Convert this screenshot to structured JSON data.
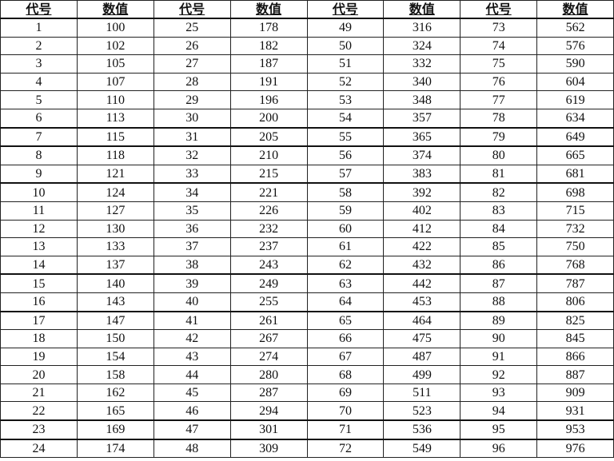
{
  "table": {
    "headers": [
      "代号",
      "数值",
      "代号",
      "数值",
      "代号",
      "数值",
      "代号",
      "数值"
    ],
    "rows": [
      [
        "1",
        "100",
        "25",
        "178",
        "49",
        "316",
        "73",
        "562"
      ],
      [
        "2",
        "102",
        "26",
        "182",
        "50",
        "324",
        "74",
        "576"
      ],
      [
        "3",
        "105",
        "27",
        "187",
        "51",
        "332",
        "75",
        "590"
      ],
      [
        "4",
        "107",
        "28",
        "191",
        "52",
        "340",
        "76",
        "604"
      ],
      [
        "5",
        "110",
        "29",
        "196",
        "53",
        "348",
        "77",
        "619"
      ],
      [
        "6",
        "113",
        "30",
        "200",
        "54",
        "357",
        "78",
        "634"
      ],
      [
        "7",
        "115",
        "31",
        "205",
        "55",
        "365",
        "79",
        "649"
      ],
      [
        "8",
        "118",
        "32",
        "210",
        "56",
        "374",
        "80",
        "665"
      ],
      [
        "9",
        "121",
        "33",
        "215",
        "57",
        "383",
        "81",
        "681"
      ],
      [
        "10",
        "124",
        "34",
        "221",
        "58",
        "392",
        "82",
        "698"
      ],
      [
        "11",
        "127",
        "35",
        "226",
        "59",
        "402",
        "83",
        "715"
      ],
      [
        "12",
        "130",
        "36",
        "232",
        "60",
        "412",
        "84",
        "732"
      ],
      [
        "13",
        "133",
        "37",
        "237",
        "61",
        "422",
        "85",
        "750"
      ],
      [
        "14",
        "137",
        "38",
        "243",
        "62",
        "432",
        "86",
        "768"
      ],
      [
        "15",
        "140",
        "39",
        "249",
        "63",
        "442",
        "87",
        "787"
      ],
      [
        "16",
        "143",
        "40",
        "255",
        "64",
        "453",
        "88",
        "806"
      ],
      [
        "17",
        "147",
        "41",
        "261",
        "65",
        "464",
        "89",
        "825"
      ],
      [
        "18",
        "150",
        "42",
        "267",
        "66",
        "475",
        "90",
        "845"
      ],
      [
        "19",
        "154",
        "43",
        "274",
        "67",
        "487",
        "91",
        "866"
      ],
      [
        "20",
        "158",
        "44",
        "280",
        "68",
        "499",
        "92",
        "887"
      ],
      [
        "21",
        "162",
        "45",
        "287",
        "69",
        "511",
        "93",
        "909"
      ],
      [
        "22",
        "165",
        "46",
        "294",
        "70",
        "523",
        "94",
        "931"
      ],
      [
        "23",
        "169",
        "47",
        "301",
        "71",
        "536",
        "95",
        "953"
      ],
      [
        "24",
        "174",
        "48",
        "309",
        "72",
        "549",
        "96",
        "976"
      ]
    ]
  }
}
